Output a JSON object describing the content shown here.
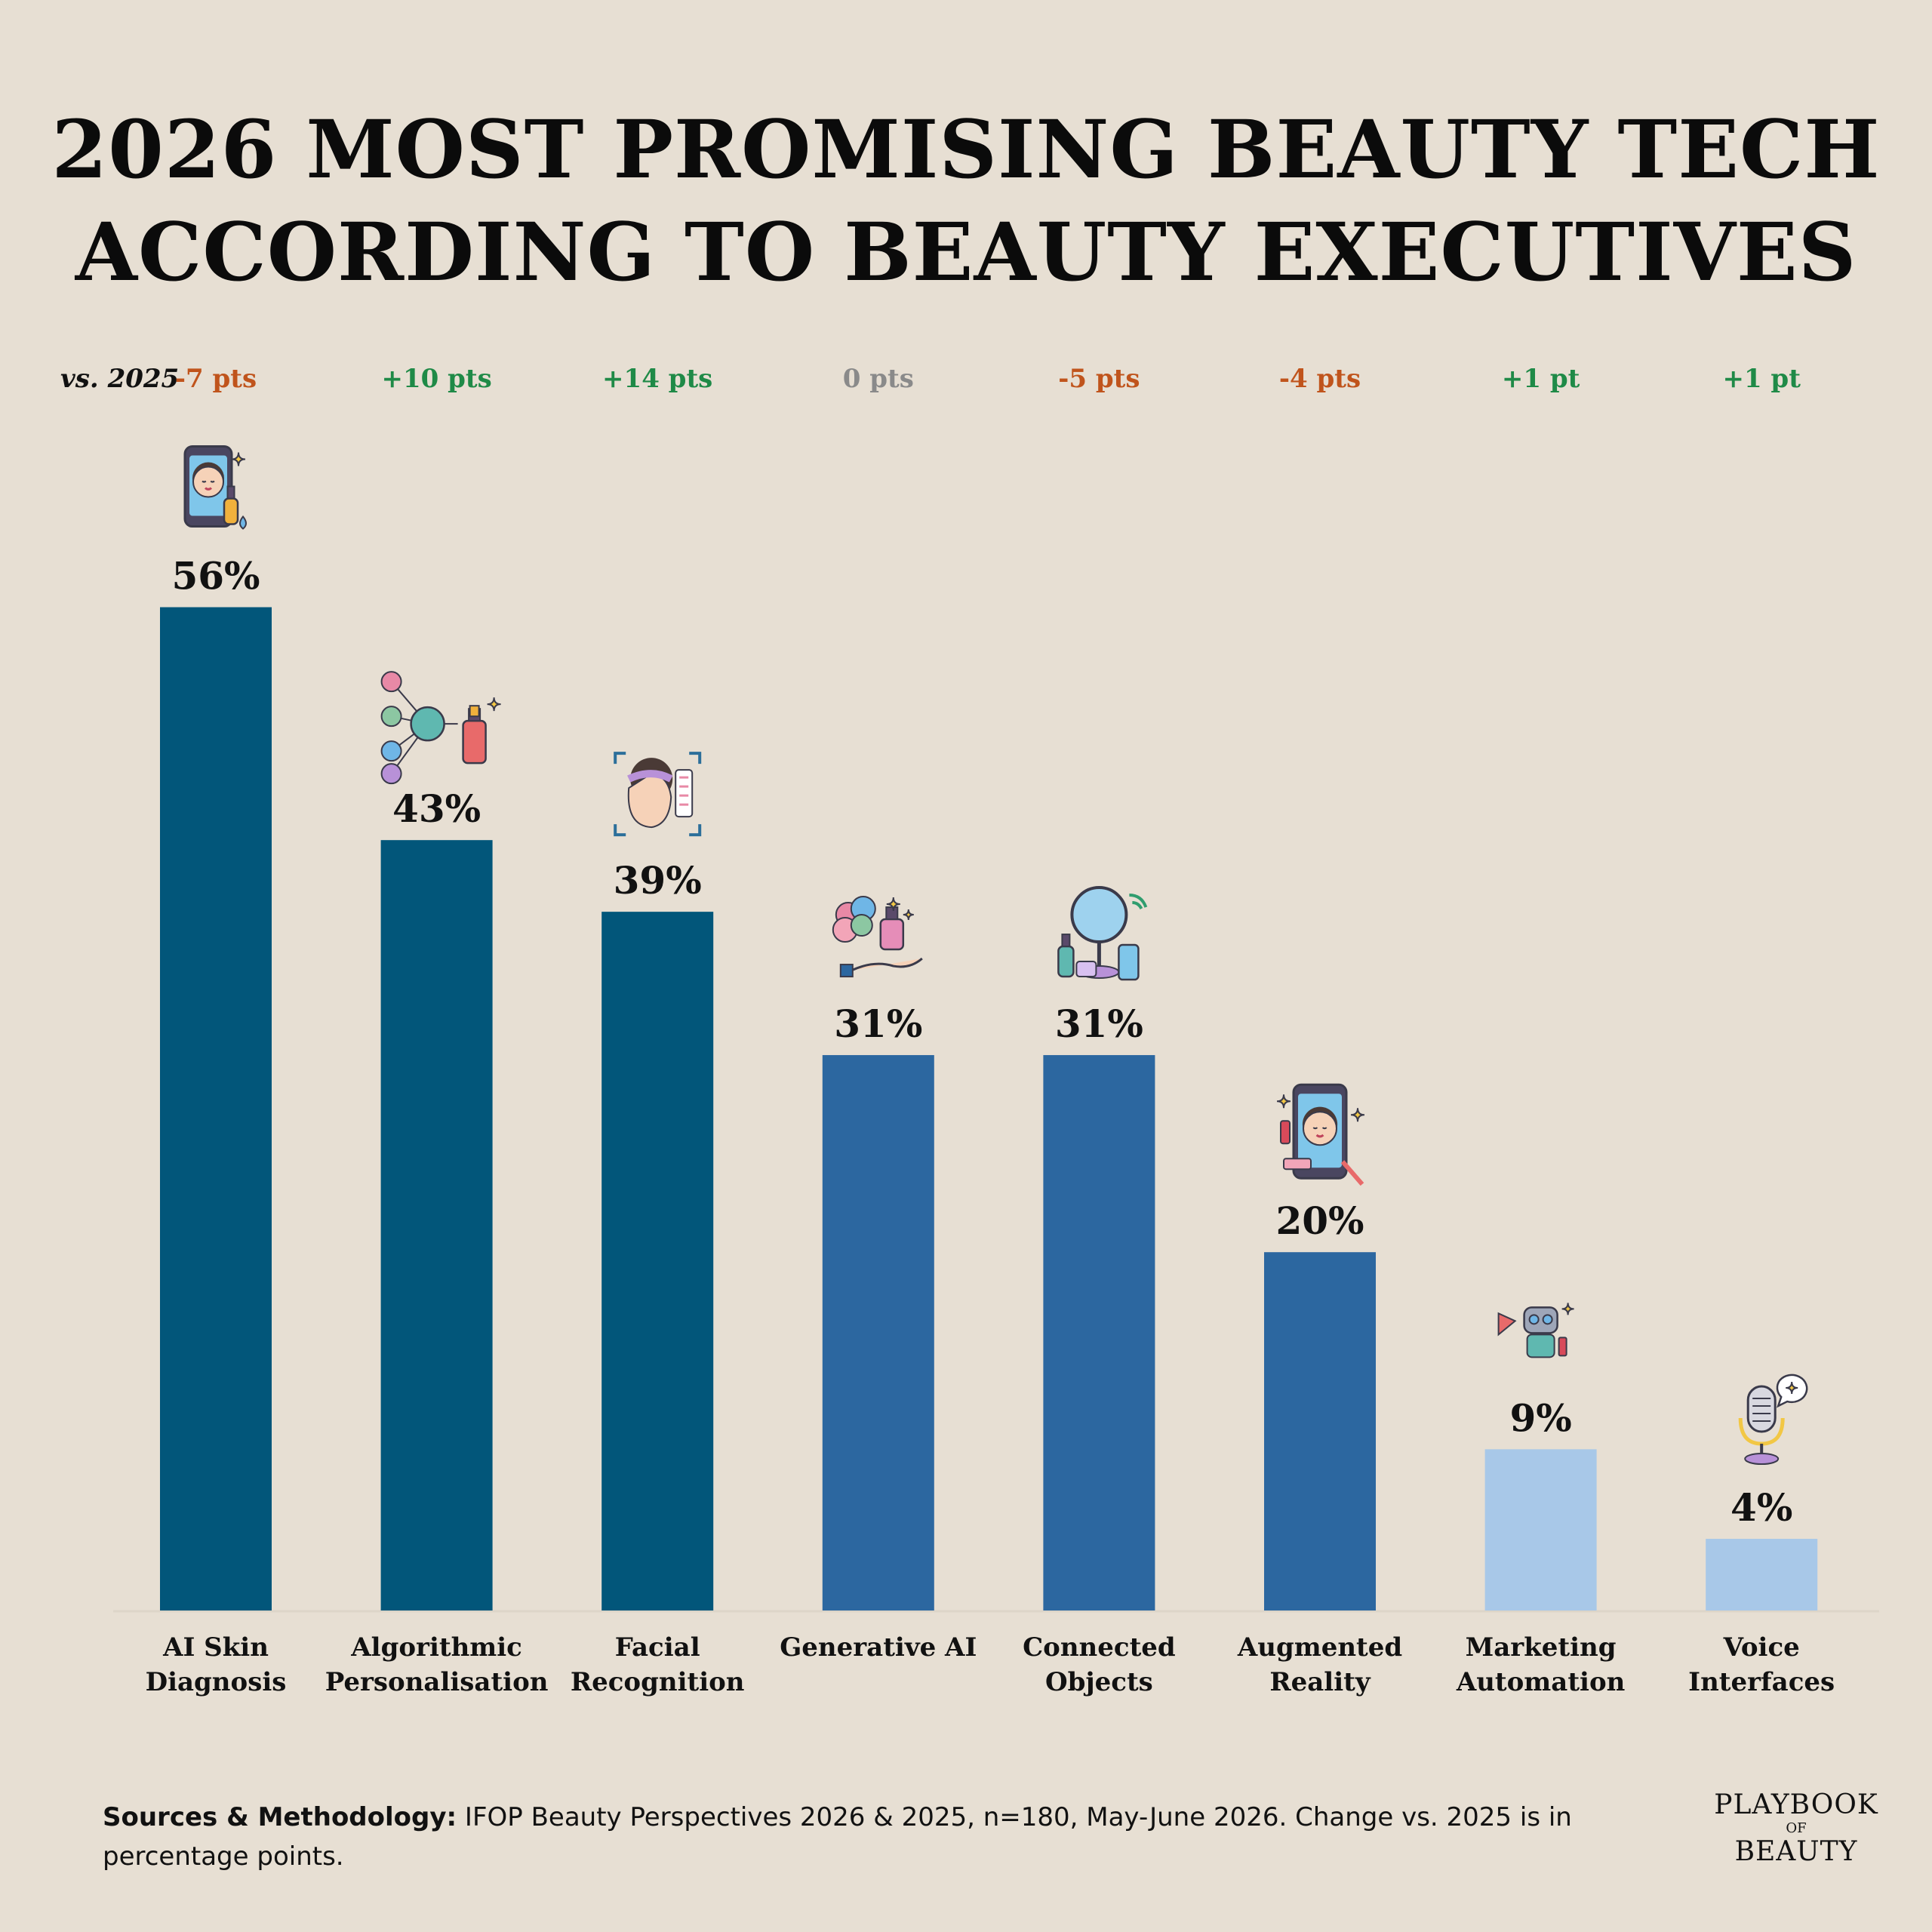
{
  "chart_data": {
    "type": "bar",
    "title_lines": [
      "2026 MOST PROMISING BEAUTY TECH",
      "ACCORDING TO BEAUTY EXECUTIVES"
    ],
    "change_label": "vs. 2025",
    "categories": [
      [
        "AI Skin",
        "Diagnosis"
      ],
      [
        "Algorithmic",
        "Personalisation"
      ],
      [
        "Facial",
        "Recognition"
      ],
      [
        "Generative AI"
      ],
      [
        "Connected",
        "Objects"
      ],
      [
        "Augmented",
        "Reality"
      ],
      [
        "Marketing",
        "Automation"
      ],
      [
        "Voice",
        "Interfaces"
      ]
    ],
    "values": [
      56,
      43,
      39,
      31,
      31,
      20,
      9,
      4
    ],
    "value_labels": [
      "56%",
      "43%",
      "39%",
      "31%",
      "31%",
      "20%",
      "9%",
      "4%"
    ],
    "changes": [
      "-7 pts",
      "+10 pts",
      "+14 pts",
      "0 pts",
      "-5 pts",
      "-4 pts",
      "+1 pt",
      "+1 pt"
    ],
    "change_values": [
      -7,
      10,
      14,
      0,
      -5,
      -4,
      1,
      1
    ],
    "bar_colors": [
      "#02567a",
      "#02567a",
      "#02567a",
      "#2c67a0",
      "#2c67a0",
      "#2c67a0",
      "#a8c8e8",
      "#a8c8e8"
    ],
    "icons": [
      "phone-face-serum-icon",
      "personalisation-network-icon",
      "face-scan-icon",
      "brain-serum-hand-icon",
      "smart-mirror-icon",
      "phone-makeup-icon",
      "robot-megaphone-icon",
      "microphone-icon"
    ],
    "ylim": [
      0,
      60
    ],
    "grid": false,
    "legend": "none"
  },
  "colors": {
    "negative": "#c0541c",
    "positive": "#1f8a47",
    "neutral": "#8a8a8a",
    "background": "#e7dfd3"
  },
  "footer": {
    "label": "Sources & Methodology:",
    "text": " IFOP Beauty Perspectives 2026 & 2025, n=180, May-June 2026. Change vs. 2025 is in percentage points."
  },
  "logo": {
    "line1": "PLAYBOOK",
    "line2": "OF",
    "line3": "BEAUTY"
  }
}
